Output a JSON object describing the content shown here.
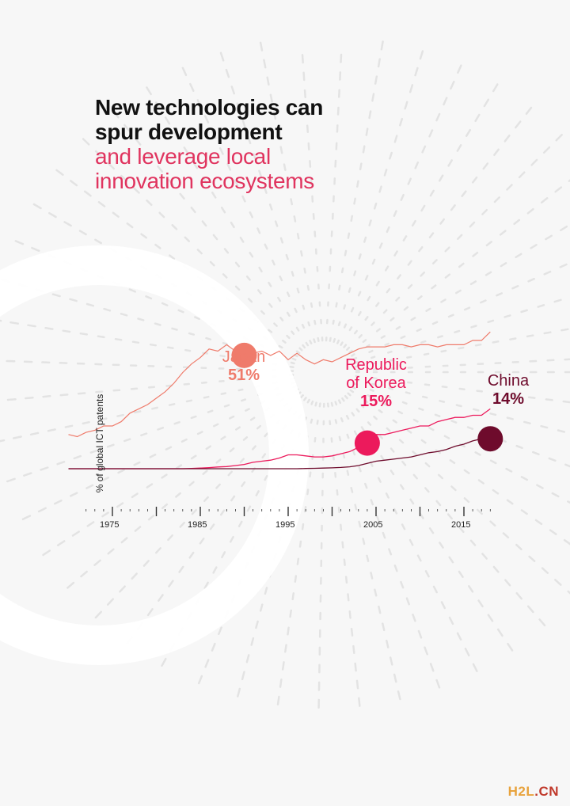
{
  "title": {
    "line1": "New technologies can",
    "line2": "spur development",
    "line3": "and leverage local",
    "line4": "innovation ecosystems"
  },
  "colors": {
    "title_dark": "#111111",
    "title_accent": "#e0345f",
    "japan": "#ef7b6b",
    "korea": "#ec1a5c",
    "china": "#6e0b2c",
    "axis": "#333333"
  },
  "chart_data": {
    "type": "line",
    "ylabel": "% of global ICT patents",
    "xlabel": "",
    "x_ticks": [
      "1975",
      "1985",
      "1995",
      "2005",
      "2015"
    ],
    "xlim": [
      1972,
      2018
    ],
    "ylim": [
      0,
      100
    ],
    "grid": false,
    "legend": "none",
    "x": [
      1970,
      1971,
      1972,
      1973,
      1974,
      1975,
      1976,
      1977,
      1978,
      1979,
      1980,
      1981,
      1982,
      1983,
      1984,
      1985,
      1986,
      1987,
      1988,
      1989,
      1990,
      1991,
      1992,
      1993,
      1994,
      1995,
      1996,
      1997,
      1998,
      1999,
      2000,
      2001,
      2002,
      2003,
      2004,
      2005,
      2006,
      2007,
      2008,
      2009,
      2010,
      2011,
      2012,
      2013,
      2014,
      2015,
      2016,
      2017,
      2018
    ],
    "series": [
      {
        "name": "Japan",
        "callout_value": "51%",
        "values": [
          16,
          15,
          17,
          18,
          20,
          20,
          22,
          26,
          28,
          30,
          33,
          36,
          40,
          45,
          49,
          52,
          56,
          55,
          58,
          55,
          53,
          54,
          55,
          53,
          55,
          51,
          54,
          51,
          49,
          51,
          50,
          52,
          54,
          56,
          57,
          57,
          57,
          58,
          58,
          57,
          58,
          58,
          57,
          58,
          58,
          58,
          60,
          60,
          64
        ]
      },
      {
        "name": "Republic of Korea",
        "callout_value": "15%",
        "values": [
          0,
          0,
          0,
          0,
          0,
          0,
          0,
          0,
          0,
          0,
          0,
          0,
          0,
          0,
          0.1,
          0.3,
          0.5,
          0.8,
          1,
          1.5,
          2,
          3,
          3.5,
          4,
          5,
          6.5,
          6.5,
          6,
          5.5,
          5.5,
          6,
          7,
          8,
          10,
          12,
          16,
          16,
          17,
          18,
          19,
          20,
          20,
          22,
          23,
          24,
          24,
          25,
          25,
          28
        ]
      },
      {
        "name": "China",
        "callout_value": "14%",
        "values": [
          0,
          0,
          0,
          0,
          0,
          0,
          0,
          0,
          0,
          0,
          0,
          0,
          0,
          0,
          0,
          0,
          0,
          0,
          0,
          0,
          0,
          0,
          0,
          0,
          0,
          0,
          0,
          0.1,
          0.2,
          0.3,
          0.4,
          0.6,
          0.9,
          1.5,
          2.5,
          3.5,
          4,
          4.5,
          5,
          5.5,
          6.5,
          7.5,
          8,
          9,
          10.5,
          11.5,
          13,
          14,
          14
        ]
      }
    ]
  },
  "watermark": {
    "part1": "H2L",
    "part2": ".CN"
  }
}
